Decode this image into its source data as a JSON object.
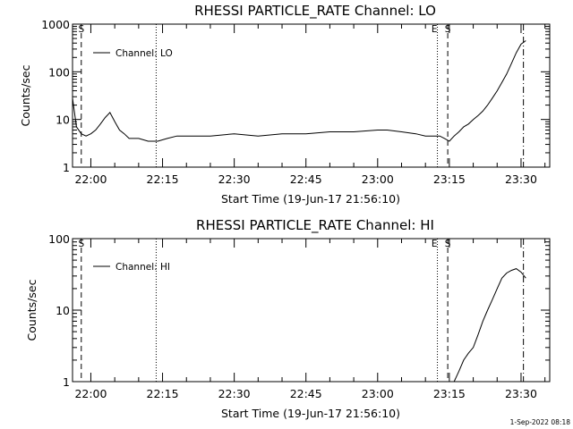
{
  "chart_data": [
    {
      "type": "line",
      "title": "RHESSI PARTICLE_RATE Channel: LO",
      "xlabel": "Start Time (19-Jun-17 21:56:10)",
      "ylabel": "Counts/sec",
      "yscale": "log",
      "ylim": [
        1,
        1000
      ],
      "xlim": [
        "21:56:10",
        "23:36:00"
      ],
      "xtick_labels": [
        "22:00",
        "22:15",
        "22:30",
        "22:45",
        "23:00",
        "23:15",
        "23:30"
      ],
      "ytick_labels": [
        "1",
        "10",
        "100",
        "1000"
      ],
      "legend": "Channel: LO",
      "legend_position": "top-left",
      "series": [
        {
          "name": "Channel: LO",
          "x": [
            "21:56:10",
            "21:57:00",
            "21:58:00",
            "21:59:00",
            "22:00:00",
            "22:01:00",
            "22:02:00",
            "22:03:00",
            "22:04:00",
            "22:05:00",
            "22:06:00",
            "22:07:00",
            "22:08:00",
            "22:10:00",
            "22:12:00",
            "22:14:00",
            "22:16:00",
            "22:18:00",
            "22:20:00",
            "22:25:00",
            "22:30:00",
            "22:35:00",
            "22:40:00",
            "22:45:00",
            "22:50:00",
            "22:55:00",
            "23:00:00",
            "23:02:00",
            "23:05:00",
            "23:08:00",
            "23:10:00",
            "23:12:00",
            "23:13:00",
            "23:14:00",
            "23:15:00",
            "23:16:00",
            "23:17:00",
            "23:18:00",
            "23:19:00",
            "23:20:00",
            "23:21:00",
            "23:22:00",
            "23:23:00",
            "23:24:00",
            "23:25:00",
            "23:26:00",
            "23:27:00",
            "23:28:00",
            "23:29:00",
            "23:30:00",
            "23:31:00"
          ],
          "values": [
            28,
            7,
            5,
            4.5,
            5,
            6,
            8,
            11,
            14,
            9,
            6,
            5,
            4,
            4,
            3.5,
            3.5,
            4,
            4.5,
            4.5,
            4.5,
            5,
            4.5,
            5,
            5,
            5.5,
            5.5,
            6,
            6,
            5.5,
            5,
            4.5,
            4.5,
            4.5,
            4,
            3.5,
            4.5,
            5.5,
            7,
            8,
            10,
            12,
            15,
            20,
            28,
            40,
            60,
            90,
            150,
            250,
            380,
            450
          ]
        }
      ],
      "markers": [
        {
          "time": "21:58:00",
          "style": "dashed",
          "label": "S"
        },
        {
          "time": "22:13:40",
          "style": "dotted",
          "label": ""
        },
        {
          "time": "23:12:30",
          "style": "dotted",
          "label": "E"
        },
        {
          "time": "23:14:40",
          "style": "dashed",
          "label": "S"
        },
        {
          "time": "23:30:30",
          "style": "dash-dot",
          "label": ""
        }
      ]
    },
    {
      "type": "line",
      "title": "RHESSI PARTICLE_RATE Channel: HI",
      "xlabel": "Start Time (19-Jun-17 21:56:10)",
      "ylabel": "Counts/sec",
      "yscale": "log",
      "ylim": [
        1,
        100
      ],
      "xlim": [
        "21:56:10",
        "23:36:00"
      ],
      "xtick_labels": [
        "22:00",
        "22:15",
        "22:30",
        "22:45",
        "23:00",
        "23:15",
        "23:30"
      ],
      "ytick_labels": [
        "1",
        "10",
        "100"
      ],
      "legend": "Channel: HI",
      "legend_position": "top-left",
      "series": [
        {
          "name": "Channel: HI",
          "x": [
            "23:16:00",
            "23:17:00",
            "23:18:00",
            "23:19:00",
            "23:20:00",
            "23:21:00",
            "23:22:00",
            "23:23:00",
            "23:24:00",
            "23:25:00",
            "23:26:00",
            "23:27:00",
            "23:28:00",
            "23:29:00",
            "23:30:00",
            "23:31:00"
          ],
          "values": [
            1,
            1.4,
            2,
            2.5,
            3,
            4.5,
            7,
            10,
            14,
            20,
            28,
            33,
            36,
            38,
            34,
            28
          ]
        }
      ],
      "markers": [
        {
          "time": "21:58:00",
          "style": "dashed",
          "label": "S"
        },
        {
          "time": "22:13:40",
          "style": "dotted",
          "label": ""
        },
        {
          "time": "23:12:30",
          "style": "dotted",
          "label": "E"
        },
        {
          "time": "23:14:40",
          "style": "dashed",
          "label": "S"
        },
        {
          "time": "23:30:30",
          "style": "dash-dot",
          "label": ""
        }
      ]
    }
  ],
  "footer": {
    "timestamp": "1-Sep-2022 08:18"
  }
}
